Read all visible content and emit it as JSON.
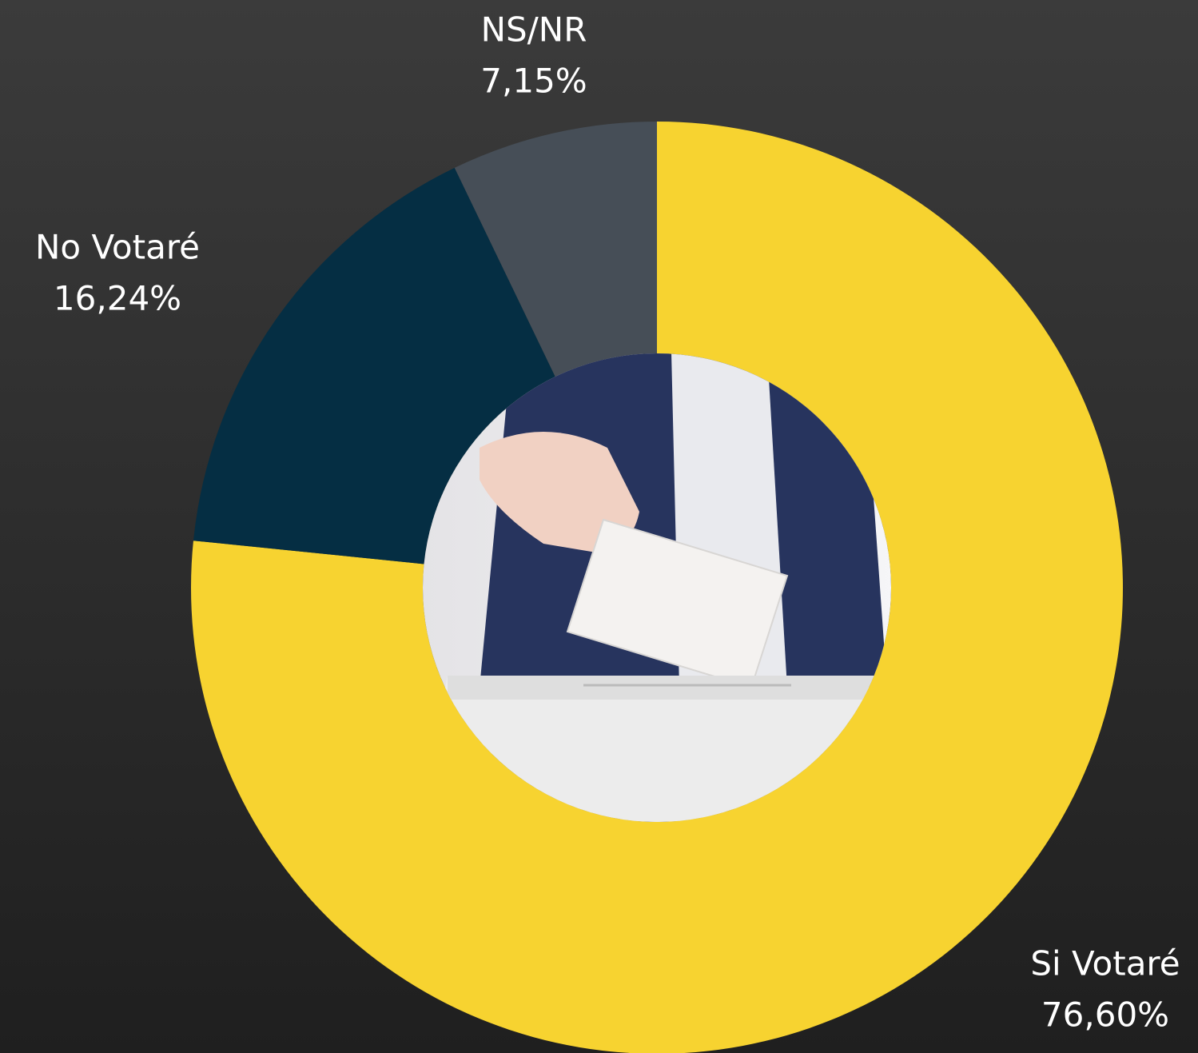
{
  "chart_data": {
    "type": "pie",
    "categories": [
      "Si Votaré",
      "No Votaré",
      "NS/NR"
    ],
    "values": [
      76.6,
      16.24,
      7.15
    ],
    "value_labels": [
      "76,60%",
      "16,24%",
      "7,15%"
    ],
    "colors": [
      "#f7d330",
      "#052e43",
      "#464e57"
    ]
  }
}
